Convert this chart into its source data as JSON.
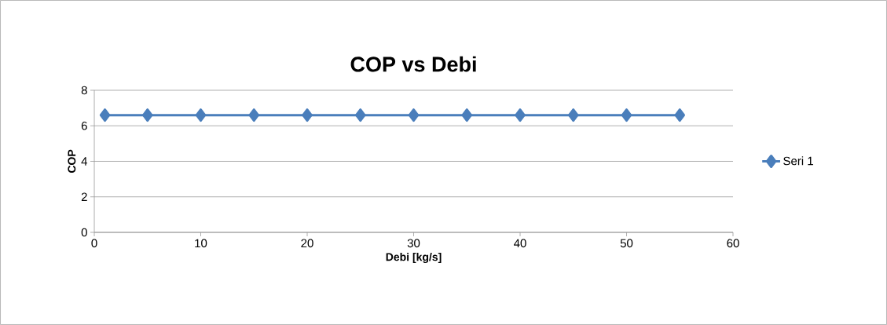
{
  "chart_data": {
    "type": "line",
    "title": "COP vs Debi",
    "xlabel": "Debi  [kg/s]",
    "ylabel": "COP",
    "x": [
      1,
      5,
      10,
      15,
      20,
      25,
      30,
      35,
      40,
      45,
      50,
      55
    ],
    "series": [
      {
        "name": "Seri 1",
        "color": "#4a7ebb",
        "values": [
          6.6,
          6.6,
          6.6,
          6.6,
          6.6,
          6.6,
          6.6,
          6.6,
          6.6,
          6.6,
          6.6,
          6.6
        ]
      }
    ],
    "xlim": [
      0,
      60
    ],
    "xticks": [
      0,
      10,
      20,
      30,
      40,
      50,
      60
    ],
    "ylim": [
      0,
      8
    ],
    "yticks": [
      0,
      2,
      4,
      6,
      8
    ],
    "grid": "y",
    "legend": "right",
    "marker": "diamond",
    "line_style": "solid"
  }
}
